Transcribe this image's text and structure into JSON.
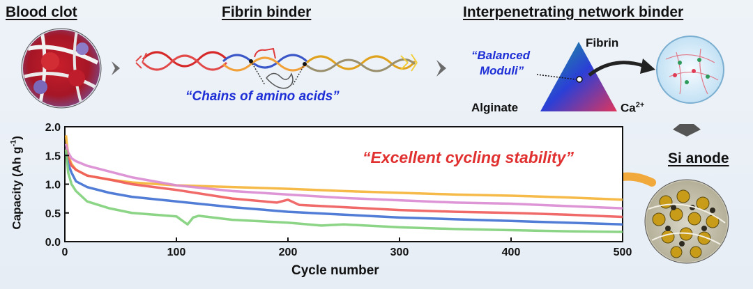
{
  "titles": {
    "blood_clot": "Blood clot",
    "fibrin_binder": "Fibrin binder",
    "network_binder": "Interpenetrating network binder",
    "si_anode": "Si anode"
  },
  "quotes": {
    "chains": "“Chains of amino acids”",
    "balanced_line1": "“Balanced",
    "balanced_line2": "Moduli”",
    "cycling": "“Excellent cycling stability”"
  },
  "triangle": {
    "top": "Fibrin",
    "left": "Alginate",
    "right_base": "Ca",
    "right_sup": "2+"
  },
  "colors": {
    "quote_blue": "#1f2fd6",
    "quote_red": "#e03030",
    "arrow_gray": "#6b6b6b",
    "arrow_orange": "#f2a93b"
  },
  "chart_data": {
    "type": "line",
    "xlabel": "Cycle number",
    "ylabel": "Capacity (Ah g",
    "ylabel_sup": "-1",
    "ylabel_end": ")",
    "xlim": [
      0,
      500
    ],
    "ylim": [
      0,
      2.0
    ],
    "xticks": [
      0,
      100,
      200,
      300,
      400,
      500
    ],
    "yticks": [
      0.0,
      0.5,
      1.0,
      1.5,
      2.0
    ],
    "xtick_labels": [
      "0",
      "100",
      "200",
      "300",
      "400",
      "500"
    ],
    "ytick_labels": [
      "0.0",
      "0.5",
      "1.0",
      "1.5",
      "2.0"
    ],
    "grid": false,
    "legend": "none",
    "series": [
      {
        "color": "#f5b335",
        "x": [
          1,
          3,
          6,
          10,
          20,
          40,
          60,
          100,
          150,
          200,
          250,
          300,
          350,
          400,
          450,
          500
        ],
        "y": [
          1.85,
          1.5,
          1.35,
          1.25,
          1.15,
          1.08,
          1.03,
          0.98,
          0.95,
          0.92,
          0.88,
          0.85,
          0.82,
          0.8,
          0.77,
          0.73
        ]
      },
      {
        "color": "#d98ad1",
        "x": [
          1,
          3,
          6,
          10,
          20,
          40,
          60,
          100,
          150,
          200,
          250,
          300,
          350,
          400,
          450,
          500
        ],
        "y": [
          1.7,
          1.55,
          1.45,
          1.4,
          1.32,
          1.22,
          1.12,
          0.98,
          0.88,
          0.82,
          0.76,
          0.72,
          0.68,
          0.66,
          0.62,
          0.58
        ]
      },
      {
        "color": "#ef5a5a",
        "x": [
          1,
          3,
          6,
          10,
          20,
          40,
          60,
          100,
          150,
          190,
          200,
          210,
          250,
          300,
          350,
          400,
          450,
          500
        ],
        "y": [
          1.6,
          1.45,
          1.32,
          1.25,
          1.15,
          1.08,
          1.0,
          0.9,
          0.75,
          0.68,
          0.73,
          0.64,
          0.6,
          0.55,
          0.52,
          0.5,
          0.47,
          0.43
        ]
      },
      {
        "color": "#3f6fd1",
        "x": [
          1,
          3,
          6,
          10,
          20,
          40,
          60,
          100,
          150,
          200,
          250,
          300,
          350,
          400,
          450,
          500
        ],
        "y": [
          1.55,
          1.35,
          1.2,
          1.05,
          0.95,
          0.85,
          0.78,
          0.7,
          0.6,
          0.52,
          0.47,
          0.42,
          0.39,
          0.36,
          0.33,
          0.3
        ]
      },
      {
        "color": "#7fd07a",
        "x": [
          1,
          3,
          6,
          10,
          20,
          40,
          60,
          100,
          110,
          115,
          120,
          150,
          200,
          230,
          250,
          300,
          350,
          400,
          450,
          500
        ],
        "y": [
          1.6,
          1.2,
          1.0,
          0.88,
          0.7,
          0.58,
          0.5,
          0.44,
          0.3,
          0.42,
          0.45,
          0.38,
          0.33,
          0.28,
          0.3,
          0.25,
          0.22,
          0.2,
          0.18,
          0.17
        ]
      }
    ]
  }
}
